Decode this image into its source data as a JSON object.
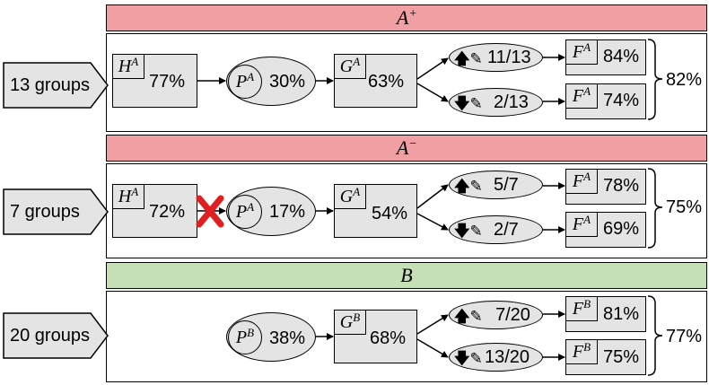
{
  "sections": [
    {
      "id": "a-plus",
      "header": {
        "base": "A",
        "sup": "+",
        "color": "#f0a0a2"
      },
      "groups_label": "13 groups",
      "H": {
        "letter": "H",
        "sup": "A",
        "pct": "77%"
      },
      "P": {
        "letter": "P",
        "sup": "A",
        "pct": "30%"
      },
      "G": {
        "letter": "G",
        "sup": "A",
        "pct": "63%"
      },
      "up": {
        "frac": "11/13"
      },
      "down": {
        "frac": "2/13"
      },
      "F_up": {
        "letter": "F",
        "sup": "A",
        "pct": "84%"
      },
      "F_down": {
        "letter": "F",
        "sup": "A",
        "pct": "74%"
      },
      "total": "82%",
      "blocked": false
    },
    {
      "id": "a-minus",
      "header": {
        "base": "A",
        "sup": "−",
        "color": "#f0a0a2"
      },
      "groups_label": "7 groups",
      "H": {
        "letter": "H",
        "sup": "A",
        "pct": "72%"
      },
      "P": {
        "letter": "P",
        "sup": "A",
        "pct": "17%"
      },
      "G": {
        "letter": "G",
        "sup": "A",
        "pct": "54%"
      },
      "up": {
        "frac": "5/7"
      },
      "down": {
        "frac": "2/7"
      },
      "F_up": {
        "letter": "F",
        "sup": "A",
        "pct": "78%"
      },
      "F_down": {
        "letter": "F",
        "sup": "A",
        "pct": "69%"
      },
      "total": "75%",
      "blocked": true
    },
    {
      "id": "b",
      "header": {
        "base": "B",
        "sup": "",
        "color": "#c5e0b4"
      },
      "groups_label": "20 groups",
      "P": {
        "letter": "P",
        "sup": "B",
        "pct": "38%"
      },
      "G": {
        "letter": "G",
        "sup": "B",
        "pct": "68%"
      },
      "up": {
        "frac": "7/20"
      },
      "down": {
        "frac": "13/20"
      },
      "F_up": {
        "letter": "F",
        "sup": "B",
        "pct": "81%"
      },
      "F_down": {
        "letter": "F",
        "sup": "B",
        "pct": "75%"
      },
      "total": "77%"
    }
  ],
  "icons": {
    "up": "arrow-up-edit-icon",
    "down": "arrow-down-edit-icon",
    "block": "red-x-icon"
  }
}
